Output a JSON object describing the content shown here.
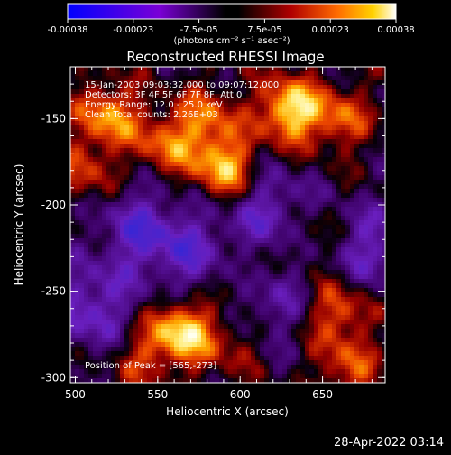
{
  "chart_data": {
    "type": "heatmap",
    "title": "Reconstructed RHESSI Image",
    "xlabel": "Heliocentric X (arcsec)",
    "ylabel": "Heliocentric Y (arcsec)",
    "xlim": [
      497,
      688
    ],
    "ylim": [
      -303,
      -120
    ],
    "xticks": [
      500,
      550,
      600,
      650
    ],
    "yticks": [
      -150,
      -200,
      -250,
      -300
    ],
    "colorbar": {
      "range": [
        -0.00038,
        0.00038
      ],
      "ticks": [
        "-0.00038",
        "-0.00023",
        "-7.5e-05",
        "7.5e-05",
        "0.00023",
        "0.00038"
      ],
      "label": "(photons cm⁻² s⁻¹ asec⁻²)"
    },
    "annotations": [
      "15-Jan-2003 09:03:32.000 to 09:07:12.000",
      "Detectors: 3F 4F 5F 6F 7F 8F, Att 0",
      "Energy Range: 12.0 - 25.0 keV",
      "Clean     Total counts: 2.26E+03"
    ],
    "peak_label": "Position of Peak = [565,-273]",
    "peak": [
      565,
      -273
    ],
    "blobs": [
      {
        "x": 630,
        "y": -145,
        "strength": 1.0
      },
      {
        "x": 565,
        "y": -273,
        "strength": 1.0
      },
      {
        "x": 590,
        "y": -178,
        "strength": 0.85
      },
      {
        "x": 520,
        "y": -148,
        "strength": 0.75
      },
      {
        "x": 555,
        "y": -165,
        "strength": 0.6
      },
      {
        "x": 660,
        "y": -150,
        "strength": 0.55
      },
      {
        "x": 660,
        "y": -262,
        "strength": 0.6
      },
      {
        "x": 665,
        "y": -295,
        "strength": 0.5
      },
      {
        "x": 600,
        "y": -240,
        "strength": 0.45
      },
      {
        "x": 540,
        "y": -288,
        "strength": 0.4
      },
      {
        "x": 595,
        "y": -280,
        "strength": 0.35
      },
      {
        "x": 640,
        "y": -218,
        "strength": 0.35
      },
      {
        "x": 505,
        "y": -180,
        "strength": 0.45
      },
      {
        "x": 580,
        "y": -150,
        "strength": 0.55
      }
    ],
    "dips": [
      {
        "x": 540,
        "y": -215,
        "strength": 0.6
      },
      {
        "x": 620,
        "y": -205,
        "strength": 0.55
      },
      {
        "x": 510,
        "y": -260,
        "strength": 0.6
      },
      {
        "x": 680,
        "y": -225,
        "strength": 0.5
      },
      {
        "x": 615,
        "y": -255,
        "strength": 0.45
      },
      {
        "x": 575,
        "y": -230,
        "strength": 0.5
      }
    ]
  },
  "footer": {
    "timestamp": "28-Apr-2022 03:14"
  }
}
